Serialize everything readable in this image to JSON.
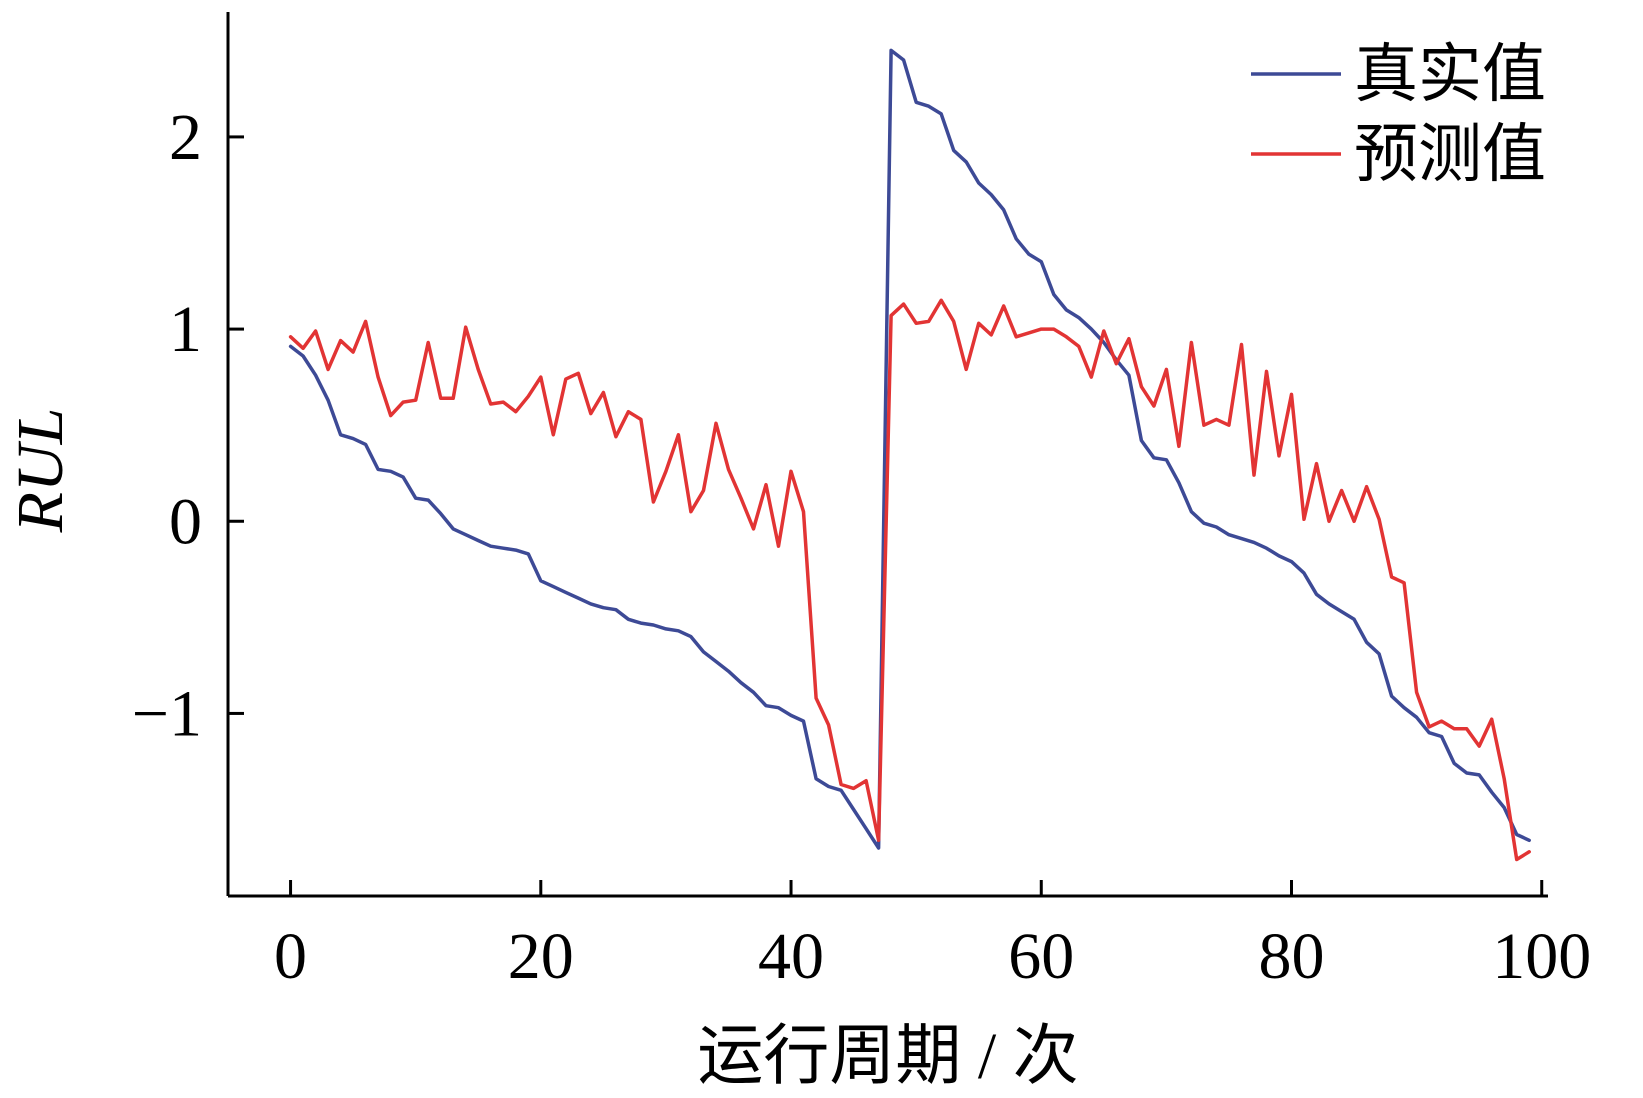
{
  "chart_data": {
    "type": "line",
    "xlabel": "运行周期 / 次",
    "ylabel": "RUL",
    "xlim": [
      -5,
      100.5
    ],
    "ylim": [
      -1.95,
      2.65
    ],
    "x_ticks": [
      0,
      20,
      40,
      60,
      80,
      100
    ],
    "y_ticks": [
      -1,
      0,
      1,
      2
    ],
    "y_tick_labels": [
      "−1",
      "0",
      "1",
      "2"
    ],
    "grid": false,
    "legend_position": "top-right",
    "series": [
      {
        "name": "真实值",
        "color": "#3d4a96",
        "x": [
          0,
          1,
          2,
          3,
          4,
          5,
          6,
          7,
          8,
          9,
          10,
          11,
          12,
          13,
          14,
          15,
          16,
          17,
          18,
          19,
          20,
          21,
          22,
          23,
          24,
          25,
          26,
          27,
          28,
          29,
          30,
          31,
          32,
          33,
          34,
          35,
          36,
          37,
          38,
          39,
          40,
          41,
          42,
          43,
          44,
          45,
          46,
          47,
          48,
          49,
          50,
          51,
          52,
          53,
          54,
          55,
          56,
          57,
          58,
          59,
          60,
          61,
          62,
          63,
          64,
          65,
          66,
          67,
          68,
          69,
          70,
          71,
          72,
          73,
          74,
          75,
          76,
          77,
          78,
          79,
          80,
          81,
          82,
          83,
          84,
          85,
          86,
          87,
          88,
          89,
          90,
          91,
          92,
          93,
          94,
          95,
          96,
          97,
          98,
          99
        ],
        "y": [
          0.91,
          0.86,
          0.76,
          0.63,
          0.45,
          0.43,
          0.4,
          0.27,
          0.26,
          0.23,
          0.12,
          0.11,
          0.04,
          -0.04,
          -0.07,
          -0.1,
          -0.13,
          -0.14,
          -0.15,
          -0.17,
          -0.31,
          -0.34,
          -0.37,
          -0.4,
          -0.43,
          -0.45,
          -0.46,
          -0.51,
          -0.53,
          -0.54,
          -0.56,
          -0.57,
          -0.6,
          -0.68,
          -0.73,
          -0.78,
          -0.84,
          -0.89,
          -0.96,
          -0.97,
          -1.01,
          -1.04,
          -1.34,
          -1.38,
          -1.4,
          -1.5,
          -1.6,
          -1.7,
          2.45,
          2.4,
          2.18,
          2.16,
          2.12,
          1.93,
          1.87,
          1.76,
          1.7,
          1.62,
          1.47,
          1.39,
          1.35,
          1.18,
          1.1,
          1.06,
          1.0,
          0.93,
          0.84,
          0.76,
          0.42,
          0.33,
          0.32,
          0.2,
          0.05,
          -0.01,
          -0.03,
          -0.07,
          -0.09,
          -0.11,
          -0.14,
          -0.18,
          -0.21,
          -0.27,
          -0.38,
          -0.43,
          -0.47,
          -0.51,
          -0.63,
          -0.69,
          -0.91,
          -0.97,
          -1.02,
          -1.1,
          -1.12,
          -1.26,
          -1.31,
          -1.32,
          -1.41,
          -1.49,
          -1.63,
          -1.66
        ]
      },
      {
        "name": "预测值",
        "color": "#e23434",
        "x": [
          0,
          1,
          2,
          3,
          4,
          5,
          6,
          7,
          8,
          9,
          10,
          11,
          12,
          13,
          14,
          15,
          16,
          17,
          18,
          19,
          20,
          21,
          22,
          23,
          24,
          25,
          26,
          27,
          28,
          29,
          30,
          31,
          32,
          33,
          34,
          35,
          36,
          37,
          38,
          39,
          40,
          41,
          42,
          43,
          44,
          45,
          46,
          47,
          48,
          49,
          50,
          51,
          52,
          53,
          54,
          55,
          56,
          57,
          58,
          59,
          60,
          61,
          62,
          63,
          64,
          65,
          66,
          67,
          68,
          69,
          70,
          71,
          72,
          73,
          74,
          75,
          76,
          77,
          78,
          79,
          80,
          81,
          82,
          83,
          84,
          85,
          86,
          87,
          88,
          89,
          90,
          91,
          92,
          93,
          94,
          95,
          96,
          97,
          98,
          99
        ],
        "y": [
          0.96,
          0.9,
          0.99,
          0.79,
          0.94,
          0.88,
          1.04,
          0.75,
          0.55,
          0.62,
          0.63,
          0.93,
          0.64,
          0.64,
          1.01,
          0.79,
          0.61,
          0.62,
          0.57,
          0.65,
          0.75,
          0.45,
          0.74,
          0.77,
          0.56,
          0.67,
          0.44,
          0.57,
          0.53,
          0.1,
          0.26,
          0.45,
          0.05,
          0.16,
          0.51,
          0.27,
          0.12,
          -0.04,
          0.19,
          -0.13,
          0.26,
          0.05,
          -0.92,
          -1.06,
          -1.37,
          -1.39,
          -1.35,
          -1.66,
          1.07,
          1.13,
          1.03,
          1.04,
          1.15,
          1.04,
          0.79,
          1.03,
          0.97,
          1.12,
          0.96,
          0.98,
          1.0,
          1.0,
          0.96,
          0.91,
          0.75,
          0.99,
          0.82,
          0.95,
          0.7,
          0.6,
          0.79,
          0.39,
          0.93,
          0.5,
          0.53,
          0.5,
          0.92,
          0.24,
          0.78,
          0.34,
          0.66,
          0.01,
          0.3,
          0.0,
          0.16,
          0.0,
          0.18,
          0.01,
          -0.29,
          -0.32,
          -0.89,
          -1.07,
          -1.04,
          -1.08,
          -1.08,
          -1.17,
          -1.03,
          -1.34,
          -1.76,
          -1.72
        ]
      }
    ]
  }
}
